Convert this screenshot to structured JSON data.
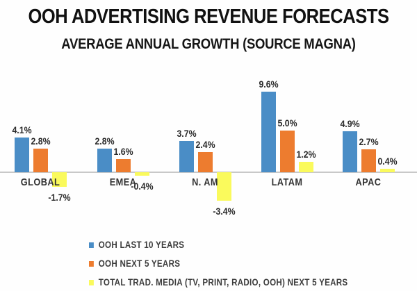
{
  "title": "OOH ADVERTISING REVENUE FORECASTS",
  "subtitle": "AVERAGE ANNUAL GROWTH (SOURCE MAGNA)",
  "chart_data": {
    "type": "bar",
    "title": "OOH ADVERTISING REVENUE FORECASTS",
    "subtitle": "AVERAGE ANNUAL GROWTH (SOURCE MAGNA)",
    "categories": [
      "GLOBAL",
      "EMEA",
      "N. AM",
      "LATAM",
      "APAC"
    ],
    "series": [
      {
        "name": "OOH LAST 10 YEARS",
        "color": "#4a8dc6",
        "values": [
          4.1,
          2.8,
          3.7,
          9.6,
          4.9
        ]
      },
      {
        "name": "OOH NEXT 5 YEARS",
        "color": "#ed7c2f",
        "values": [
          2.8,
          1.6,
          2.4,
          5.0,
          2.7
        ]
      },
      {
        "name": "TOTAL TRAD. MEDIA (TV, PRINT, RADIO, OOH) NEXT 5 YEARS",
        "color": "#fafa5c",
        "values": [
          -1.7,
          -0.4,
          -3.4,
          1.2,
          0.4
        ]
      }
    ],
    "data_labels": [
      [
        "4.1%",
        "2.8%",
        "3.7%",
        "9.6%",
        "4.9%"
      ],
      [
        "2.8%",
        "1.6%",
        "2.4%",
        "5.0%",
        "2.7%"
      ],
      [
        "-1.7%",
        "-0.4%",
        "-3.4%",
        "1.2%",
        "0.4%"
      ]
    ],
    "xlabel": "",
    "ylabel": "",
    "ylim": [
      -4,
      10
    ],
    "grid": false,
    "y_axis_visible": false,
    "baseline_color": "#c8c8c8",
    "legend_position": "bottom-left"
  }
}
